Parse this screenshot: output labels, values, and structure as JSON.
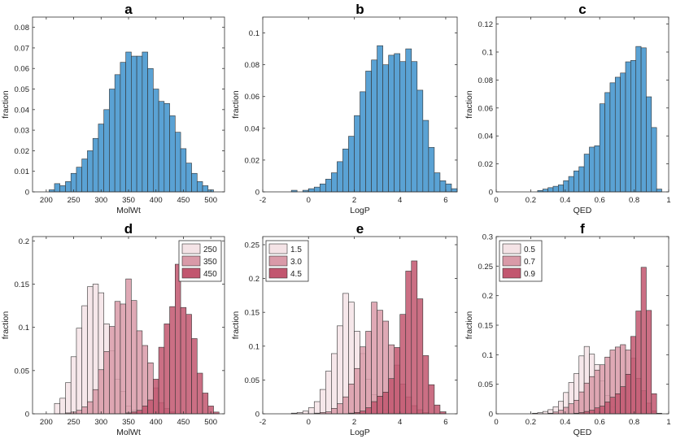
{
  "colors": {
    "blue": "#5aa2d4",
    "pink1": "#f4e3e6",
    "pink2": "#d99aa8",
    "pink3": "#c2566f"
  },
  "chart_data": [
    {
      "type": "bar",
      "panel": "a",
      "xlabel": "MolWt",
      "ylabel": "fraction",
      "xlim": [
        175,
        525
      ],
      "ylim": [
        0,
        0.085
      ],
      "xticks": [
        200,
        250,
        300,
        350,
        400,
        450,
        500
      ],
      "yticks": [
        0,
        0.01,
        0.02,
        0.03,
        0.04,
        0.05,
        0.06,
        0.07,
        0.08
      ],
      "ytick_labels": [
        "0",
        "0.01",
        "0.02",
        "0.03",
        "0.04",
        "0.05",
        "0.06",
        "0.07",
        "0.08"
      ],
      "bin_start": 175,
      "bin_width": 10,
      "series": [
        {
          "name": "all",
          "color": "#5aa2d4",
          "values": [
            0.0,
            0.0,
            0.0,
            0.001,
            0.004,
            0.003,
            0.005,
            0.009,
            0.012,
            0.016,
            0.02,
            0.026,
            0.033,
            0.04,
            0.05,
            0.057,
            0.063,
            0.068,
            0.066,
            0.066,
            0.068,
            0.06,
            0.05,
            0.044,
            0.043,
            0.037,
            0.029,
            0.021,
            0.014,
            0.009,
            0.005,
            0.003,
            0.001,
            0.0
          ]
        }
      ]
    },
    {
      "type": "bar",
      "panel": "b",
      "xlabel": "LogP",
      "ylabel": "fraction",
      "xlim": [
        -2,
        6.5
      ],
      "ylim": [
        0,
        0.11
      ],
      "xticks": [
        -2,
        0,
        2,
        4,
        6
      ],
      "yticks": [
        0,
        0.02,
        0.04,
        0.06,
        0.08,
        0.1
      ],
      "ytick_labels": [
        "0",
        "0.02",
        "0.04",
        "0.06",
        "0.08",
        "0.1"
      ],
      "bin_start": -2,
      "bin_width": 0.25,
      "series": [
        {
          "name": "all",
          "color": "#5aa2d4",
          "values": [
            0.0,
            0.0,
            0.0,
            0.0,
            0.0,
            0.001,
            0.0,
            0.001,
            0.002,
            0.003,
            0.005,
            0.008,
            0.012,
            0.019,
            0.027,
            0.035,
            0.048,
            0.063,
            0.076,
            0.083,
            0.092,
            0.08,
            0.086,
            0.087,
            0.082,
            0.09,
            0.082,
            0.064,
            0.045,
            0.028,
            0.012,
            0.007,
            0.005,
            0.002
          ]
        }
      ]
    },
    {
      "type": "bar",
      "panel": "c",
      "xlabel": "QED",
      "ylabel": "fraction",
      "xlim": [
        0,
        1
      ],
      "ylim": [
        0,
        0.125
      ],
      "xticks": [
        0,
        0.2,
        0.4,
        0.6,
        0.8,
        1
      ],
      "yticks": [
        0,
        0.02,
        0.04,
        0.06,
        0.08,
        0.1,
        0.12
      ],
      "ytick_labels": [
        "0",
        "0.02",
        "0.04",
        "0.06",
        "0.08",
        "0.1",
        "0.12"
      ],
      "bin_start": 0,
      "bin_width": 0.03,
      "series": [
        {
          "name": "all",
          "color": "#5aa2d4",
          "values": [
            0,
            0,
            0,
            0,
            0,
            0,
            0,
            0,
            0.001,
            0.002,
            0.003,
            0.004,
            0.005,
            0.008,
            0.011,
            0.015,
            0.018,
            0.027,
            0.032,
            0.033,
            0.063,
            0.071,
            0.078,
            0.082,
            0.085,
            0.093,
            0.094,
            0.104,
            0.103,
            0.068,
            0.046,
            0.002
          ]
        }
      ]
    },
    {
      "type": "bar",
      "panel": "d",
      "xlabel": "MolWt",
      "ylabel": "fraction",
      "xlim": [
        175,
        525
      ],
      "ylim": [
        0,
        0.205
      ],
      "xticks": [
        200,
        250,
        300,
        350,
        400,
        450,
        500
      ],
      "yticks": [
        0,
        0.05,
        0.1,
        0.15,
        0.2
      ],
      "ytick_labels": [
        "0",
        "0.05",
        "0.1",
        "0.15",
        "0.2"
      ],
      "bin_start": 175,
      "bin_width": 10,
      "legend_position": "top-right",
      "series": [
        {
          "name": "250",
          "color": "#f4e3e6",
          "values": [
            0,
            0,
            0,
            0.0,
            0.012,
            0.018,
            0.036,
            0.066,
            0.099,
            0.125,
            0.147,
            0.15,
            0.14,
            0.104,
            0.073,
            0.04,
            0.026,
            0.009,
            0.004,
            0.001,
            0,
            0,
            0,
            0,
            0,
            0,
            0,
            0,
            0,
            0,
            0,
            0,
            0,
            0
          ]
        },
        {
          "name": "350",
          "color": "#d99aa8",
          "values": [
            0,
            0,
            0,
            0,
            0,
            0,
            0.001,
            0.002,
            0.004,
            0.008,
            0.014,
            0.028,
            0.051,
            0.072,
            0.101,
            0.13,
            0.127,
            0.156,
            0.131,
            0.096,
            0.079,
            0.059,
            0.03,
            0.013,
            0.006,
            0.002,
            0,
            0,
            0,
            0,
            0,
            0,
            0,
            0
          ]
        },
        {
          "name": "450",
          "color": "#c2566f",
          "values": [
            0,
            0,
            0,
            0,
            0,
            0,
            0,
            0,
            0,
            0,
            0,
            0,
            0,
            0,
            0,
            0,
            0,
            0.001,
            0.002,
            0.004,
            0.009,
            0.016,
            0.04,
            0.077,
            0.104,
            0.124,
            0.173,
            0.123,
            0.115,
            0.087,
            0.047,
            0.024,
            0.009,
            0.002
          ]
        }
      ]
    },
    {
      "type": "bar",
      "panel": "e",
      "xlabel": "LogP",
      "ylabel": "fraction",
      "xlim": [
        -2,
        6.5
      ],
      "ylim": [
        0,
        0.262
      ],
      "xticks": [
        -2,
        0,
        2,
        4,
        6
      ],
      "yticks": [
        0,
        0.05,
        0.1,
        0.15,
        0.2,
        0.25
      ],
      "ytick_labels": [
        "0",
        "0.05",
        "0.1",
        "0.15",
        "0.2",
        "0.25"
      ],
      "bin_start": -2,
      "bin_width": 0.25,
      "legend_position": "top-left",
      "series": [
        {
          "name": "1.5",
          "color": "#f4e3e6",
          "values": [
            0,
            0,
            0,
            0,
            0,
            0.001,
            0.002,
            0.004,
            0.009,
            0.018,
            0.036,
            0.063,
            0.089,
            0.13,
            0.178,
            0.165,
            0.122,
            0.089,
            0.051,
            0.028,
            0.013,
            0.006,
            0.002,
            0.001,
            0,
            0,
            0,
            0,
            0,
            0,
            0,
            0,
            0,
            0
          ]
        },
        {
          "name": "3.0",
          "color": "#d99aa8",
          "values": [
            0,
            0,
            0,
            0,
            0,
            0,
            0,
            0,
            0,
            0.001,
            0.002,
            0.003,
            0.008,
            0.015,
            0.025,
            0.044,
            0.067,
            0.099,
            0.122,
            0.165,
            0.153,
            0.137,
            0.102,
            0.072,
            0.044,
            0.025,
            0.012,
            0.006,
            0.002,
            0,
            0,
            0,
            0,
            0
          ]
        },
        {
          "name": "4.5",
          "color": "#c2566f",
          "values": [
            0,
            0,
            0,
            0,
            0,
            0,
            0,
            0,
            0,
            0,
            0,
            0,
            0,
            0,
            0,
            0.001,
            0.002,
            0.004,
            0.009,
            0.018,
            0.026,
            0.032,
            0.052,
            0.098,
            0.147,
            0.211,
            0.226,
            0.17,
            0.086,
            0.043,
            0.013,
            0.003,
            0,
            0
          ]
        }
      ]
    },
    {
      "type": "bar",
      "panel": "f",
      "xlabel": "QED",
      "ylabel": "fraction",
      "xlim": [
        0,
        1
      ],
      "ylim": [
        0,
        0.3
      ],
      "xticks": [
        0,
        0.2,
        0.4,
        0.6,
        0.8,
        1
      ],
      "yticks": [
        0,
        0.05,
        0.1,
        0.15,
        0.2,
        0.25,
        0.3
      ],
      "ytick_labels": [
        "0",
        "0.05",
        "0.1",
        "0.15",
        "0.2",
        "0.25",
        "0.3"
      ],
      "bin_start": 0,
      "bin_width": 0.03,
      "legend_position": "top-left",
      "series": [
        {
          "name": "0.5",
          "color": "#f4e3e6",
          "values": [
            0,
            0,
            0,
            0,
            0,
            0,
            0,
            0.001,
            0.002,
            0.004,
            0.007,
            0.012,
            0.021,
            0.036,
            0.053,
            0.068,
            0.098,
            0.114,
            0.101,
            0.083,
            0.056,
            0.031,
            0.012,
            0.004,
            0.001,
            0,
            0,
            0,
            0,
            0,
            0,
            0
          ]
        },
        {
          "name": "0.7",
          "color": "#d99aa8",
          "values": [
            0,
            0,
            0,
            0,
            0,
            0,
            0,
            0,
            0,
            0,
            0.001,
            0.003,
            0.006,
            0.011,
            0.017,
            0.023,
            0.037,
            0.052,
            0.063,
            0.074,
            0.083,
            0.096,
            0.108,
            0.113,
            0.117,
            0.108,
            0.094,
            0.06,
            0.039,
            0.018,
            0.005,
            0
          ]
        },
        {
          "name": "0.9",
          "color": "#c2566f",
          "values": [
            0,
            0,
            0,
            0,
            0,
            0,
            0,
            0,
            0,
            0,
            0,
            0,
            0,
            0,
            0,
            0.001,
            0.002,
            0.004,
            0.006,
            0.01,
            0.013,
            0.02,
            0.028,
            0.034,
            0.046,
            0.067,
            0.131,
            0.174,
            0.248,
            0.175,
            0.034,
            0.001
          ]
        }
      ]
    }
  ]
}
